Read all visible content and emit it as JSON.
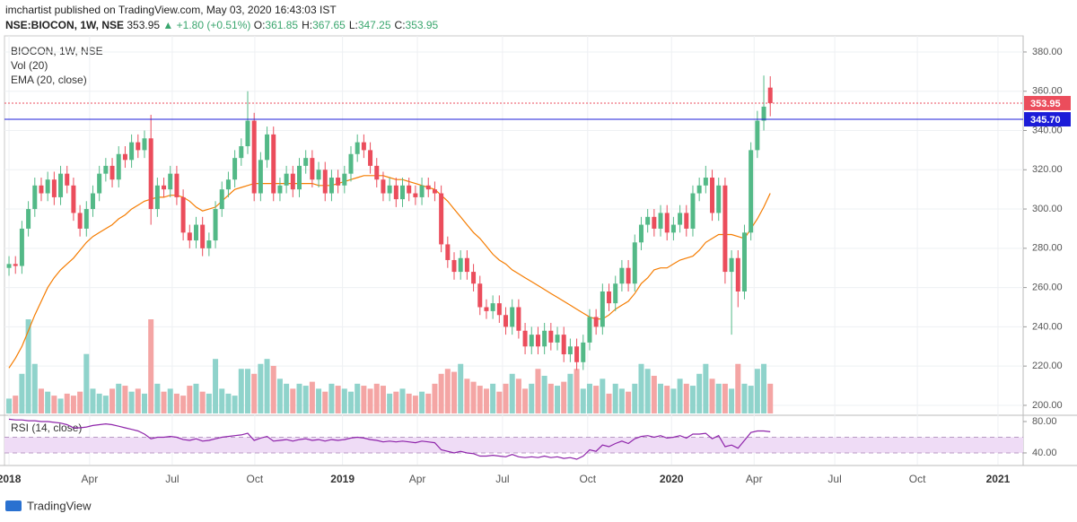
{
  "header": {
    "publisher": "imchartist published on TradingView.com, May 03, 2020 16:43:03 IST",
    "symbol": "NSE:BIOCON, 1W, NSE",
    "last": "353.95",
    "change": "+1.80 (+0.51%)",
    "ohlc": [
      {
        "label": "O:",
        "value": "361.85"
      },
      {
        "label": "H:",
        "value": "367.65"
      },
      {
        "label": "L:",
        "value": "347.25"
      },
      {
        "label": "C:",
        "value": "353.95"
      }
    ]
  },
  "chart_data": {
    "type": "candlestick",
    "title": "BIOCON, 1W, NSE",
    "up_color": "#53b987",
    "down_color": "#eb4d5c",
    "volume_up_color": "#8fd3cb",
    "volume_down_color": "#f4a5a4",
    "grid": true,
    "xlim": [
      -0.7,
      157.2
    ],
    "xticks": [
      {
        "value": 0,
        "label": "2018"
      },
      {
        "value": 12.5,
        "label": "Apr"
      },
      {
        "value": 25.3,
        "label": "Jul"
      },
      {
        "value": 38.1,
        "label": "Oct"
      },
      {
        "value": 51.7,
        "label": "2019"
      },
      {
        "value": 63.3,
        "label": "Apr"
      },
      {
        "value": 76.5,
        "label": "Jul"
      },
      {
        "value": 89.7,
        "label": "Oct"
      },
      {
        "value": 102.7,
        "label": "2020"
      },
      {
        "value": 115.5,
        "label": "Apr"
      },
      {
        "value": 128,
        "label": "Jul"
      },
      {
        "value": 140.8,
        "label": "Oct"
      },
      {
        "value": 153.3,
        "label": "2021"
      }
    ],
    "ylim": [
      195.4,
      388.2
    ],
    "yticks": [
      {
        "value": 200,
        "label": "200.00"
      },
      {
        "value": 220,
        "label": "220.00"
      },
      {
        "value": 240,
        "label": "240.00"
      },
      {
        "value": 260,
        "label": "260.00"
      },
      {
        "value": 280,
        "label": "280.00"
      },
      {
        "value": 300,
        "label": "300.00"
      },
      {
        "value": 320,
        "label": "320.00"
      },
      {
        "value": 340,
        "label": "340.00"
      },
      {
        "value": 360,
        "label": "360.00"
      },
      {
        "value": 380,
        "label": "380.00"
      }
    ],
    "price_lines": [
      {
        "value": 353.95,
        "label": "353.95",
        "color": "#eb4d5c",
        "style": "dotted"
      },
      {
        "value": 345.7,
        "label": "345.70",
        "color": "#1c1cd8",
        "style": "solid"
      }
    ],
    "open": [
      270,
      272,
      271,
      290,
      300,
      312,
      308,
      315,
      306,
      318,
      312,
      298,
      290,
      300,
      308,
      318,
      322,
      315,
      328,
      325,
      334,
      330,
      336,
      300,
      312,
      310,
      318,
      306,
      288,
      284,
      292,
      280,
      284,
      300,
      310,
      315,
      326,
      332,
      345,
      308,
      325,
      338,
      308,
      312,
      318,
      310,
      322,
      326,
      315,
      320,
      308,
      316,
      312,
      318,
      328,
      334,
      330,
      322,
      315,
      308,
      312,
      305,
      312,
      308,
      306,
      312,
      310,
      308,
      282,
      274,
      268,
      275,
      268,
      262,
      250,
      248,
      252,
      246,
      240,
      250,
      238,
      230,
      236,
      230,
      238,
      232,
      236,
      226,
      230,
      222,
      232,
      245,
      240,
      258,
      252,
      262,
      270,
      262,
      283,
      292,
      296,
      290,
      298,
      288,
      292,
      298,
      290,
      308,
      312,
      316,
      298,
      312,
      268,
      275,
      258,
      288,
      330,
      345,
      361.85
    ],
    "high": [
      276,
      276,
      294,
      304,
      316,
      316,
      319,
      319,
      322,
      322,
      316,
      302,
      304,
      312,
      322,
      326,
      326,
      332,
      332,
      338,
      338,
      340,
      348,
      316,
      316,
      322,
      322,
      310,
      292,
      296,
      296,
      288,
      304,
      314,
      319,
      330,
      336,
      360,
      349,
      329,
      342,
      342,
      316,
      322,
      322,
      326,
      330,
      330,
      324,
      324,
      320,
      320,
      322,
      332,
      338,
      338,
      334,
      326,
      319,
      316,
      316,
      316,
      316,
      312,
      316,
      316,
      314,
      312,
      286,
      278,
      279,
      279,
      272,
      266,
      254,
      256,
      256,
      250,
      254,
      254,
      242,
      240,
      240,
      242,
      242,
      240,
      240,
      234,
      234,
      236,
      249,
      249,
      262,
      262,
      266,
      274,
      274,
      287,
      296,
      300,
      300,
      302,
      302,
      296,
      302,
      302,
      312,
      316,
      322,
      320,
      316,
      316,
      279,
      279,
      292,
      334,
      350,
      368,
      367.65
    ],
    "low": [
      266,
      267,
      267,
      286,
      296,
      304,
      304,
      302,
      302,
      308,
      294,
      286,
      286,
      296,
      304,
      314,
      311,
      311,
      321,
      321,
      326,
      326,
      292,
      296,
      306,
      306,
      302,
      284,
      280,
      280,
      276,
      276,
      280,
      296,
      306,
      311,
      322,
      328,
      304,
      304,
      321,
      304,
      304,
      308,
      306,
      306,
      318,
      311,
      311,
      304,
      304,
      308,
      308,
      314,
      324,
      326,
      318,
      311,
      304,
      304,
      301,
      301,
      304,
      302,
      302,
      306,
      304,
      278,
      270,
      264,
      264,
      264,
      258,
      246,
      244,
      244,
      242,
      236,
      236,
      234,
      226,
      226,
      226,
      226,
      228,
      228,
      222,
      222,
      218,
      218,
      228,
      236,
      236,
      248,
      248,
      258,
      258,
      258,
      279,
      288,
      286,
      286,
      284,
      284,
      288,
      286,
      286,
      304,
      308,
      294,
      294,
      262,
      236,
      250,
      254,
      284,
      326,
      340,
      347.25
    ],
    "close": [
      272,
      271,
      290,
      300,
      312,
      308,
      315,
      306,
      318,
      312,
      298,
      290,
      300,
      308,
      318,
      322,
      315,
      328,
      325,
      334,
      330,
      336,
      300,
      312,
      310,
      318,
      306,
      288,
      284,
      292,
      280,
      284,
      300,
      310,
      315,
      326,
      332,
      345,
      308,
      325,
      338,
      308,
      312,
      318,
      310,
      322,
      326,
      315,
      320,
      308,
      316,
      312,
      318,
      328,
      334,
      330,
      322,
      315,
      308,
      312,
      305,
      312,
      308,
      306,
      312,
      310,
      308,
      282,
      274,
      268,
      275,
      268,
      262,
      250,
      248,
      252,
      246,
      240,
      250,
      238,
      230,
      236,
      230,
      238,
      232,
      236,
      226,
      230,
      222,
      232,
      245,
      240,
      258,
      252,
      262,
      270,
      262,
      283,
      292,
      296,
      290,
      298,
      288,
      292,
      298,
      290,
      308,
      312,
      316,
      298,
      312,
      268,
      275,
      258,
      288,
      330,
      345,
      352.15,
      353.95
    ],
    "volume": {
      "name": "Vol (20)",
      "values": [
        15,
        18,
        40,
        95,
        50,
        25,
        22,
        18,
        15,
        20,
        18,
        22,
        60,
        25,
        20,
        18,
        25,
        30,
        28,
        22,
        25,
        20,
        95,
        30,
        22,
        25,
        20,
        18,
        28,
        30,
        22,
        20,
        55,
        25,
        20,
        18,
        45,
        45,
        40,
        50,
        55,
        48,
        35,
        30,
        25,
        30,
        28,
        32,
        25,
        22,
        30,
        28,
        25,
        22,
        30,
        28,
        25,
        30,
        28,
        20,
        22,
        25,
        20,
        18,
        22,
        20,
        30,
        40,
        45,
        42,
        50,
        35,
        32,
        28,
        25,
        30,
        22,
        30,
        40,
        35,
        25,
        30,
        45,
        38,
        30,
        28,
        32,
        40,
        45,
        25,
        30,
        28,
        35,
        20,
        30,
        25,
        22,
        30,
        50,
        45,
        38,
        30,
        28,
        25,
        35,
        30,
        28,
        40,
        50,
        35,
        30,
        30,
        25,
        50,
        30,
        28,
        45,
        50,
        30
      ]
    },
    "ema": {
      "name": "EMA (20, close)",
      "color": "#f57c00",
      "values": [
        219,
        224,
        230,
        238,
        246,
        253,
        260,
        265,
        269,
        272,
        275,
        279,
        283,
        286,
        288,
        290,
        292,
        295,
        297,
        300,
        302,
        304,
        305,
        306,
        306,
        307,
        307,
        306,
        304,
        301,
        299,
        300,
        301,
        304,
        307,
        310,
        311,
        312,
        313,
        313,
        313,
        313,
        313,
        313,
        313,
        313,
        313,
        313,
        312,
        312,
        312,
        313,
        314,
        315,
        316,
        317,
        317,
        317,
        317,
        316,
        315,
        315,
        314,
        313,
        312,
        311,
        310,
        307,
        304,
        300,
        296,
        292,
        288,
        285,
        281,
        277,
        274,
        272,
        269,
        267,
        265,
        263,
        261,
        259,
        257,
        255,
        253,
        251,
        249,
        247,
        245,
        244,
        244,
        246,
        249,
        251,
        253,
        257,
        262,
        265,
        269,
        270,
        270,
        272,
        274,
        275,
        276,
        279,
        283,
        285,
        287,
        287,
        287,
        286,
        285,
        290,
        295,
        301,
        308
      ]
    },
    "rsi": {
      "name": "RSI (14, close)",
      "color": "#8e24aa",
      "band": [
        40,
        60
      ],
      "band_color": "#efdcf6",
      "ylim": [
        25.1,
        85.7
      ],
      "yticks": [
        {
          "value": 80,
          "label": "80.00"
        },
        {
          "value": 40,
          "label": "40.00"
        }
      ],
      "values": [
        83,
        82,
        82,
        81,
        81,
        80,
        80,
        79,
        78,
        76,
        72,
        72,
        73,
        75,
        76,
        77,
        76,
        74,
        72,
        70,
        68,
        64,
        58,
        60,
        60,
        61,
        60,
        57,
        56,
        58,
        55,
        56,
        58,
        60,
        61,
        62,
        63,
        65,
        56,
        59,
        61,
        55,
        56,
        57,
        55,
        57,
        58,
        56,
        57,
        55,
        57,
        56,
        57,
        59,
        60,
        59,
        57,
        56,
        54,
        55,
        54,
        55,
        54,
        53,
        55,
        54,
        53,
        44,
        42,
        40,
        42,
        40,
        39,
        36,
        36,
        37,
        36,
        35,
        38,
        35,
        34,
        35,
        34,
        36,
        34,
        35,
        33,
        34,
        32,
        36,
        44,
        42,
        50,
        48,
        52,
        55,
        52,
        58,
        61,
        62,
        60,
        62,
        59,
        60,
        62,
        59,
        64,
        64,
        65,
        58,
        62,
        48,
        50,
        46,
        56,
        66,
        68,
        68,
        67
      ]
    }
  },
  "footer": {
    "brand": "TradingView"
  }
}
